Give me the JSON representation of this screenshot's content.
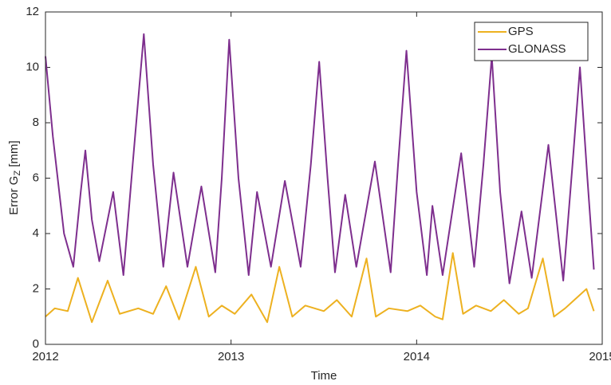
{
  "chart_data": {
    "type": "line",
    "xlabel": "Time",
    "ylabel": {
      "text": "Error G",
      "subscript": "Z",
      "suffix": " [mm]"
    },
    "xlim": [
      2012,
      2015
    ],
    "xticks": [
      2012,
      2013,
      2014,
      2015
    ],
    "ylim": [
      0,
      12
    ],
    "yticks": [
      0,
      2,
      4,
      6,
      8,
      10,
      12
    ],
    "grid": false,
    "legend": "top-right",
    "series": [
      {
        "name": "GPS",
        "color": "#EDB120",
        "x": [
          2012.0,
          2012.05,
          2012.12,
          2012.175,
          2012.25,
          2012.335,
          2012.4,
          2012.5,
          2012.58,
          2012.65,
          2012.72,
          2012.81,
          2012.88,
          2012.95,
          2013.02,
          2013.11,
          2013.195,
          2013.26,
          2013.33,
          2013.4,
          2013.5,
          2013.57,
          2013.65,
          2013.73,
          2013.78,
          2013.85,
          2013.95,
          2014.02,
          2014.1,
          2014.14,
          2014.195,
          2014.25,
          2014.32,
          2014.4,
          2014.47,
          2014.55,
          2014.6,
          2014.68,
          2014.74,
          2014.8,
          2014.915,
          2014.955
        ],
        "values": [
          1.0,
          1.3,
          1.2,
          2.4,
          0.8,
          2.3,
          1.1,
          1.3,
          1.1,
          2.1,
          0.9,
          2.8,
          1.0,
          1.4,
          1.1,
          1.8,
          0.8,
          2.8,
          1.0,
          1.4,
          1.2,
          1.6,
          1.0,
          3.1,
          1.0,
          1.3,
          1.2,
          1.4,
          1.0,
          0.9,
          3.3,
          1.1,
          1.4,
          1.2,
          1.6,
          1.1,
          1.3,
          3.1,
          1.0,
          1.3,
          2.0,
          1.2
        ]
      },
      {
        "name": "GLONASS",
        "color": "#7E2F8E",
        "x": [
          2012.0,
          2012.04,
          2012.1,
          2012.15,
          2012.19,
          2012.215,
          2012.25,
          2012.29,
          2012.365,
          2012.42,
          2012.47,
          2012.53,
          2012.58,
          2012.635,
          2012.69,
          2012.765,
          2012.84,
          2012.915,
          2012.95,
          2012.99,
          2013.04,
          2013.095,
          2013.14,
          2013.215,
          2013.29,
          2013.375,
          2013.43,
          2013.475,
          2013.52,
          2013.56,
          2013.615,
          2013.675,
          2013.775,
          2013.86,
          2013.9,
          2013.945,
          2014.0,
          2014.055,
          2014.085,
          2014.14,
          2014.24,
          2014.31,
          2014.36,
          2014.405,
          2014.45,
          2014.5,
          2014.565,
          2014.62,
          2014.71,
          2014.79,
          2014.84,
          2014.88,
          2014.92,
          2014.955
        ],
        "values": [
          10.4,
          7.5,
          4.0,
          2.8,
          5.5,
          7.0,
          4.5,
          3.0,
          5.5,
          2.5,
          6.5,
          11.2,
          6.5,
          2.8,
          6.2,
          2.8,
          5.7,
          2.6,
          6.0,
          11.0,
          6.0,
          2.5,
          5.5,
          2.8,
          5.9,
          2.8,
          6.5,
          10.2,
          6.0,
          2.6,
          5.4,
          2.8,
          6.6,
          2.6,
          6.5,
          10.6,
          5.5,
          2.5,
          5.0,
          2.5,
          6.9,
          2.8,
          6.5,
          10.4,
          5.5,
          2.2,
          4.8,
          2.4,
          7.2,
          2.3,
          6.5,
          10.0,
          6.0,
          2.7
        ]
      }
    ]
  }
}
